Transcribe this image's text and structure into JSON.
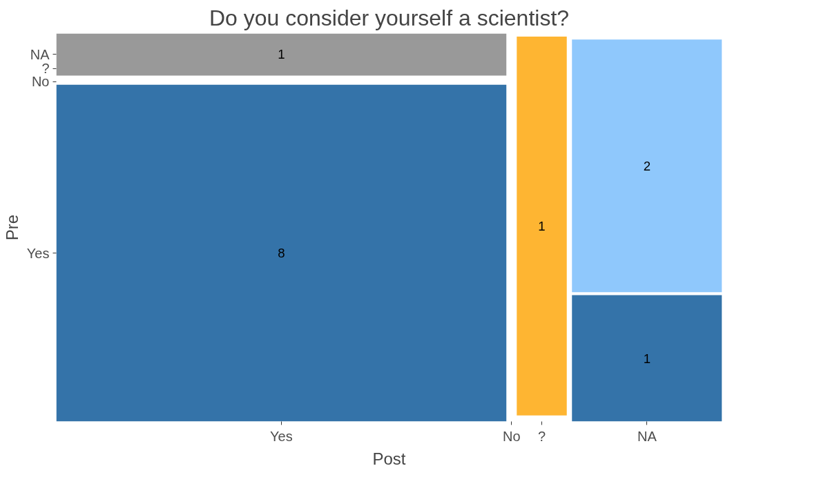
{
  "chart_data": {
    "type": "other",
    "title": "Do you consider yourself a scientist?",
    "xlabel": "Post",
    "ylabel": "Pre",
    "categories": [
      "Yes",
      "No",
      "?",
      "NA"
    ],
    "y_categories": [
      "NA",
      "?",
      "No",
      "Yes"
    ],
    "series": [
      {
        "color": "#3473a9",
        "values": [
          8,
          null,
          null,
          1
        ]
      },
      {
        "color": "#8fc8fc",
        "values": [
          null,
          null,
          null,
          2
        ]
      },
      {
        "color": "#feb532",
        "values": [
          null,
          null,
          1,
          null
        ]
      },
      {
        "color": "#999999",
        "values": [
          1,
          null,
          null,
          null
        ]
      }
    ],
    "data_labels": true
  }
}
